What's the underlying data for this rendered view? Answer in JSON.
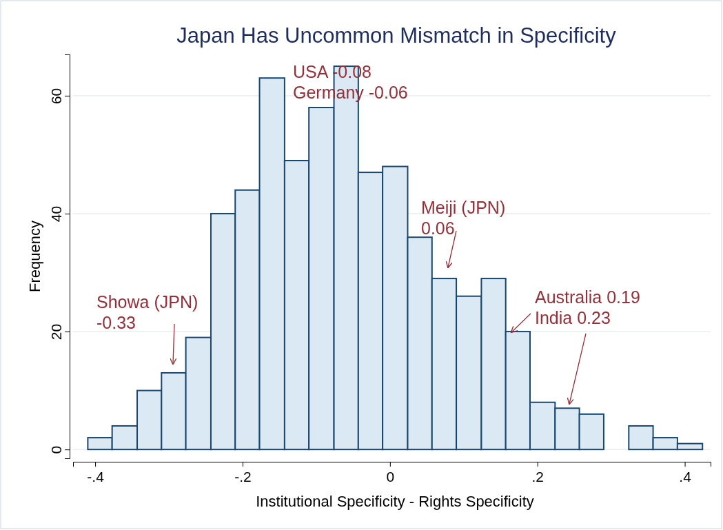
{
  "chart_data": {
    "type": "histogram",
    "title": "Japan Has Uncommon Mismatch in Specificity",
    "xlabel": "Institutional Specificity - Rights Specificity",
    "ylabel": "Frequency",
    "bins": [
      -0.41,
      -0.377,
      -0.343,
      -0.31,
      -0.277,
      -0.243,
      -0.21,
      -0.177,
      -0.143,
      -0.11,
      -0.076,
      -0.043,
      -0.01,
      0.024,
      0.057,
      0.09,
      0.124,
      0.157,
      0.19,
      0.224,
      0.257,
      0.29,
      0.324,
      0.357,
      0.39,
      0.424
    ],
    "values": [
      2,
      4,
      10,
      13,
      19,
      40,
      44,
      63,
      49,
      58,
      65,
      47,
      48,
      36,
      29,
      26,
      29,
      20,
      8,
      7,
      6,
      0,
      4,
      2,
      1
    ],
    "color": "#dbe9f5",
    "xlim": [
      -0.43,
      0.435
    ],
    "ylim": [
      -1.5,
      67
    ],
    "xticks": [
      {
        "value": -0.4,
        "label": "-.4"
      },
      {
        "value": -0.2,
        "label": "-.2"
      },
      0,
      {
        "value": 0.2,
        "label": ".2"
      },
      {
        "value": 0.4,
        "label": ".4"
      }
    ],
    "yticks": [
      0,
      20,
      40,
      60
    ],
    "grid": "y",
    "annotations": [
      "USA -0.08",
      "Germany -0.06",
      "Meiji (JPN)\n0.06",
      "Showa (JPN)\n-0.33",
      "Australia 0.19",
      "India 0.23"
    ]
  }
}
